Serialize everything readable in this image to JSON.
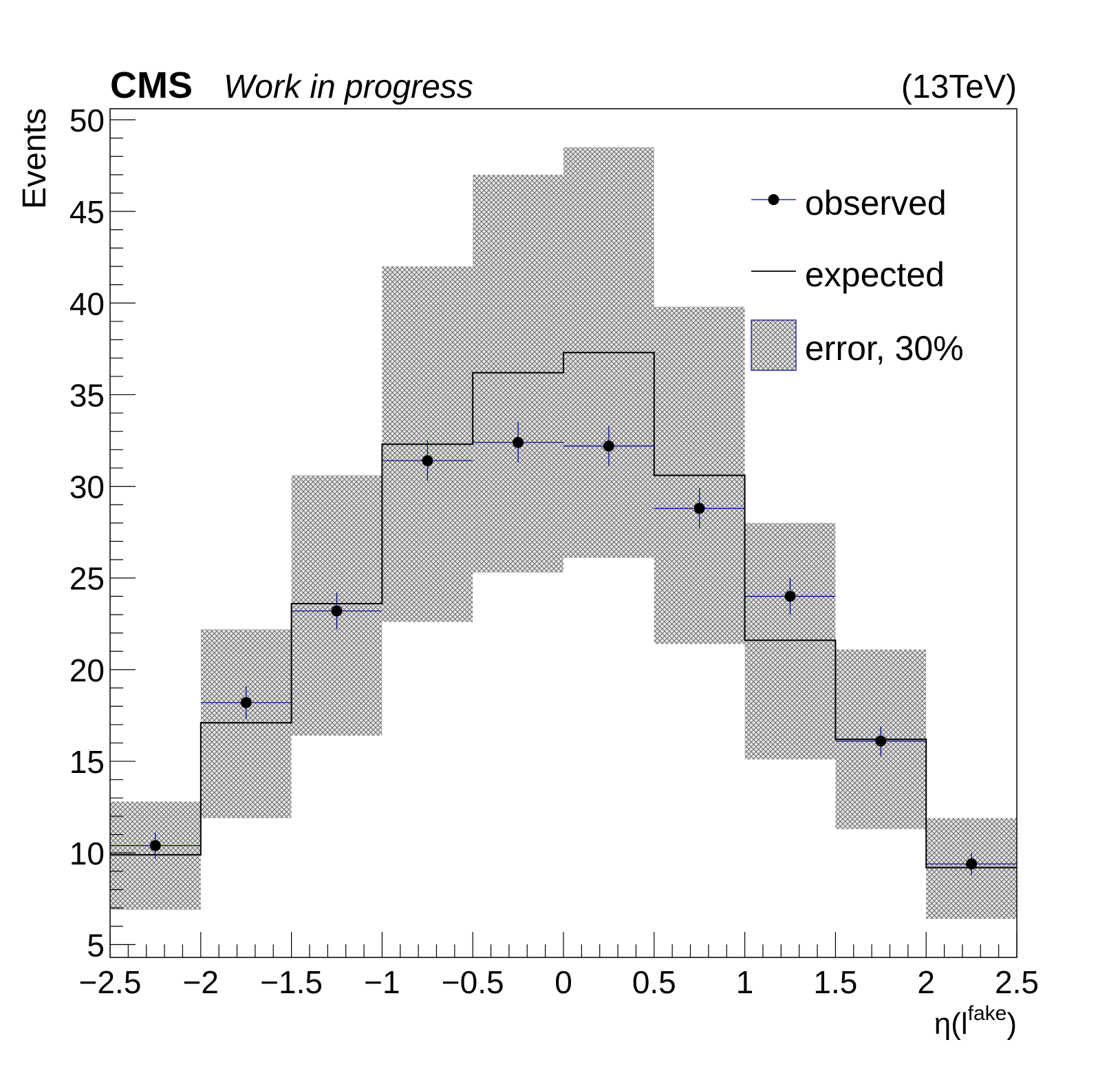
{
  "chart_data": {
    "type": "histogram",
    "header": {
      "experiment": "CMS",
      "status": "Work in progress",
      "energy": "(13TeV)"
    },
    "xlabel": "η(l",
    "xlabel_sup": "fake",
    "xlabel_close": ")",
    "ylabel": "Events",
    "xlim": [
      -2.5,
      2.5
    ],
    "ylim": [
      4.3,
      50.6
    ],
    "x_ticks": [
      -2.5,
      -2,
      -1.5,
      -1,
      -0.5,
      0,
      0.5,
      1,
      1.5,
      2,
      2.5
    ],
    "x_tick_labels": [
      "−2.5",
      "−2",
      "−1.5",
      "−1",
      "−0.5",
      "0",
      "0.5",
      "1",
      "1.5",
      "2",
      "2.5"
    ],
    "y_ticks": [
      5,
      10,
      15,
      20,
      25,
      30,
      35,
      40,
      45,
      50
    ],
    "y_tick_labels": [
      "5",
      "10",
      "15",
      "20",
      "25",
      "30",
      "35",
      "40",
      "45",
      "50"
    ],
    "bin_edges": [
      -2.5,
      -2,
      -1.5,
      -1,
      -0.5,
      0,
      0.5,
      1,
      1.5,
      2,
      2.5
    ],
    "series": [
      {
        "name": "observed",
        "kind": "points",
        "x": [
          -2.25,
          -1.75,
          -1.25,
          -0.75,
          -0.25,
          0.25,
          0.75,
          1.25,
          1.75,
          2.25
        ],
        "values": [
          10.4,
          18.2,
          23.2,
          31.4,
          32.4,
          32.2,
          28.8,
          24.0,
          16.1,
          9.4
        ],
        "errors": [
          0.7,
          0.9,
          1.0,
          1.1,
          1.1,
          1.1,
          1.1,
          1.0,
          0.8,
          0.6
        ],
        "color": "#000099"
      },
      {
        "name": "expected",
        "kind": "step",
        "values": [
          9.9,
          17.1,
          23.6,
          32.3,
          36.2,
          37.3,
          30.6,
          21.6,
          16.2,
          9.2
        ],
        "color": "#000000"
      },
      {
        "name": "error, 30%",
        "kind": "band",
        "lower": [
          6.9,
          11.9,
          16.4,
          22.6,
          25.3,
          26.1,
          21.4,
          15.1,
          11.3,
          6.4
        ],
        "upper": [
          12.8,
          22.2,
          30.6,
          42.0,
          47.0,
          48.5,
          39.8,
          28.0,
          21.1,
          11.9
        ],
        "color": "#000099"
      }
    ],
    "legend": {
      "position": "top-right",
      "entries": [
        {
          "label": "observed"
        },
        {
          "label": "expected"
        },
        {
          "label": "error, 30%"
        }
      ]
    },
    "grid": false
  }
}
